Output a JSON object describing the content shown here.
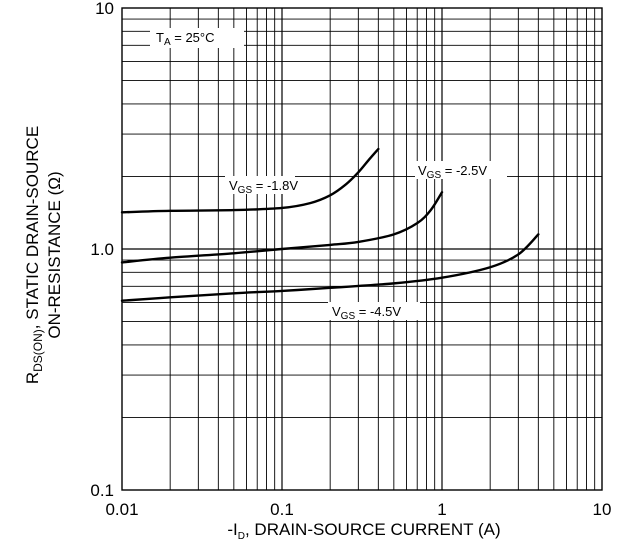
{
  "chart_data": {
    "type": "line",
    "xscale": "log",
    "yscale": "log",
    "xlim": [
      0.01,
      10
    ],
    "ylim": [
      0.1,
      10
    ],
    "grid": true,
    "x_ticks": [
      "0.01",
      "0.1",
      "1",
      "10"
    ],
    "y_ticks": [
      "0.1",
      "1.0",
      "10"
    ],
    "xlabel": {
      "prefix": "-I",
      "sub": "D",
      "suffix": ", DRAIN-SOURCE CURRENT (A)"
    },
    "ylabel": {
      "line1_prefix": "R",
      "line1_sub": "DS(ON)",
      "line1_suffix": ", STATIC DRAIN-SOURCE",
      "line2": "ON-RESISTANCE (Ω)"
    },
    "condition": {
      "prefix": "T",
      "sub": "A",
      "suffix": " = 25°C"
    },
    "series": [
      {
        "label_prefix": "V",
        "label_sub": "GS",
        "label_suffix": " = -1.8V",
        "label_at": [
          0.035,
          1.95
        ],
        "points": [
          [
            0.01,
            1.42
          ],
          [
            0.02,
            1.44
          ],
          [
            0.05,
            1.45
          ],
          [
            0.1,
            1.48
          ],
          [
            0.15,
            1.55
          ],
          [
            0.2,
            1.67
          ],
          [
            0.25,
            1.85
          ],
          [
            0.3,
            2.08
          ],
          [
            0.35,
            2.35
          ],
          [
            0.4,
            2.6
          ]
        ]
      },
      {
        "label_prefix": "V",
        "label_sub": "GS",
        "label_suffix": " = -2.5V",
        "label_at": [
          0.95,
          2.2
        ],
        "points": [
          [
            0.01,
            0.88
          ],
          [
            0.02,
            0.92
          ],
          [
            0.05,
            0.96
          ],
          [
            0.1,
            1.0
          ],
          [
            0.2,
            1.04
          ],
          [
            0.3,
            1.07
          ],
          [
            0.5,
            1.15
          ],
          [
            0.7,
            1.28
          ],
          [
            0.85,
            1.45
          ],
          [
            1.0,
            1.72
          ]
        ]
      },
      {
        "label_prefix": "V",
        "label_sub": "GS",
        "label_suffix": " = -4.5V",
        "label_at": [
          0.15,
          0.43
        ],
        "points": [
          [
            0.01,
            0.61
          ],
          [
            0.02,
            0.63
          ],
          [
            0.05,
            0.655
          ],
          [
            0.1,
            0.67
          ],
          [
            0.2,
            0.69
          ],
          [
            0.5,
            0.72
          ],
          [
            1.0,
            0.76
          ],
          [
            2.0,
            0.84
          ],
          [
            3.0,
            0.95
          ],
          [
            4.0,
            1.15
          ]
        ]
      }
    ]
  }
}
